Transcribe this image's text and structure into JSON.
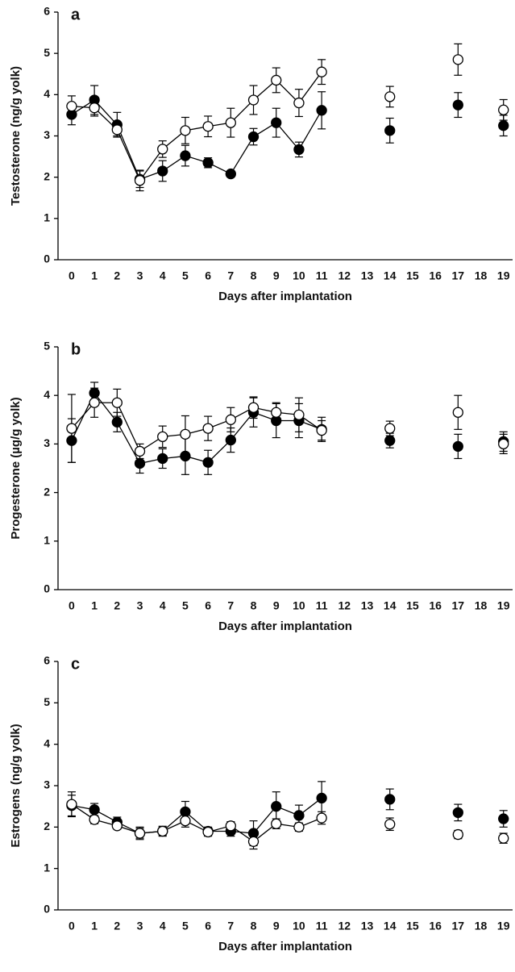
{
  "chart_data": [
    {
      "type": "scatter",
      "label": "a",
      "ylabel": "Testosterone (ng/g yolk)",
      "xlabel": "Days after implantation",
      "x": [
        0,
        1,
        2,
        3,
        4,
        5,
        6,
        7,
        8,
        9,
        10,
        11,
        12,
        13,
        14,
        15,
        16,
        17,
        18,
        19
      ],
      "xlim": [
        -0.6,
        19.4
      ],
      "xticks": [
        0,
        1,
        2,
        3,
        4,
        5,
        6,
        7,
        8,
        9,
        10,
        11,
        12,
        13,
        14,
        15,
        16,
        17,
        18,
        19
      ],
      "ylim": [
        0,
        6
      ],
      "yticks": [
        0,
        1,
        2,
        3,
        4,
        5,
        6
      ],
      "series": [
        {
          "color": "#000000",
          "marker": "filled",
          "values": [
            3.52,
            3.87,
            3.27,
            1.95,
            2.15,
            2.52,
            2.35,
            2.08,
            2.98,
            3.32,
            2.67,
            3.62,
            null,
            null,
            3.13,
            null,
            null,
            3.75,
            null,
            3.25
          ],
          "errors": [
            0.25,
            0.35,
            0.3,
            0.2,
            0.25,
            0.25,
            0.12,
            0.07,
            0.2,
            0.35,
            0.18,
            0.45,
            null,
            null,
            0.3,
            null,
            null,
            0.3,
            null,
            0.25
          ]
        },
        {
          "color": "#000000",
          "marker": "open",
          "values": [
            3.72,
            3.68,
            3.15,
            1.92,
            2.68,
            3.13,
            3.23,
            3.32,
            3.87,
            4.35,
            3.8,
            4.55,
            null,
            null,
            3.95,
            null,
            null,
            4.85,
            null,
            3.63
          ],
          "errors": [
            0.25,
            0.2,
            0.15,
            0.25,
            0.2,
            0.32,
            0.25,
            0.35,
            0.35,
            0.3,
            0.33,
            0.3,
            null,
            null,
            0.25,
            null,
            null,
            0.38,
            null,
            0.25
          ]
        }
      ]
    },
    {
      "type": "scatter",
      "label": "b",
      "ylabel": "Progesterone (µg/g yolk)",
      "xlabel": "Days after implantation",
      "x": [
        0,
        1,
        2,
        3,
        4,
        5,
        6,
        7,
        8,
        9,
        10,
        11,
        12,
        13,
        14,
        15,
        16,
        17,
        18,
        19
      ],
      "xlim": [
        -0.6,
        19.4
      ],
      "xticks": [
        0,
        1,
        2,
        3,
        4,
        5,
        6,
        7,
        8,
        9,
        10,
        11,
        12,
        13,
        14,
        15,
        16,
        17,
        18,
        19
      ],
      "ylim": [
        0,
        5
      ],
      "yticks": [
        0,
        1,
        2,
        3,
        4,
        5
      ],
      "series": [
        {
          "color": "#000000",
          "marker": "filled",
          "values": [
            3.07,
            4.05,
            3.45,
            2.6,
            2.7,
            2.75,
            2.62,
            3.08,
            3.65,
            3.48,
            3.48,
            3.3,
            null,
            null,
            3.07,
            null,
            null,
            2.95,
            null,
            3.05
          ],
          "errors": [
            0.45,
            0.22,
            0.2,
            0.2,
            0.2,
            0.38,
            0.25,
            0.25,
            0.3,
            0.35,
            0.35,
            0.25,
            null,
            null,
            0.15,
            null,
            null,
            0.25,
            null,
            0.2
          ]
        },
        {
          "color": "#000000",
          "marker": "open",
          "values": [
            3.32,
            3.85,
            3.85,
            2.85,
            3.15,
            3.2,
            3.32,
            3.5,
            3.75,
            3.65,
            3.6,
            3.28,
            null,
            null,
            3.32,
            null,
            null,
            3.65,
            null,
            3.0
          ],
          "errors": [
            0.7,
            0.3,
            0.28,
            0.15,
            0.22,
            0.38,
            0.25,
            0.25,
            0.22,
            0.2,
            0.35,
            0.2,
            null,
            null,
            0.15,
            null,
            null,
            0.35,
            null,
            0.2
          ]
        }
      ]
    },
    {
      "type": "scatter",
      "label": "c",
      "ylabel": "Estrogens (ng/g yolk)",
      "xlabel": "Days after implantation",
      "x": [
        0,
        1,
        2,
        3,
        4,
        5,
        6,
        7,
        8,
        9,
        10,
        11,
        12,
        13,
        14,
        15,
        16,
        17,
        18,
        19
      ],
      "xlim": [
        -0.6,
        19.4
      ],
      "xticks": [
        0,
        1,
        2,
        3,
        4,
        5,
        6,
        7,
        8,
        9,
        10,
        11,
        12,
        13,
        14,
        15,
        16,
        17,
        18,
        19
      ],
      "ylim": [
        0,
        6
      ],
      "yticks": [
        0,
        1,
        2,
        3,
        4,
        5,
        6
      ],
      "series": [
        {
          "color": "#000000",
          "marker": "filled",
          "values": [
            2.52,
            2.42,
            2.12,
            1.85,
            1.9,
            2.37,
            1.9,
            1.9,
            1.85,
            2.5,
            2.28,
            2.7,
            null,
            null,
            2.67,
            null,
            null,
            2.35,
            null,
            2.2
          ],
          "errors": [
            0.25,
            0.15,
            0.12,
            0.15,
            0.12,
            0.25,
            0.1,
            0.12,
            0.3,
            0.35,
            0.25,
            0.4,
            null,
            null,
            0.25,
            null,
            null,
            0.2,
            null,
            0.2
          ]
        },
        {
          "color": "#000000",
          "marker": "open",
          "values": [
            2.55,
            2.18,
            2.03,
            1.85,
            1.9,
            2.15,
            1.88,
            2.03,
            1.65,
            2.08,
            2.0,
            2.22,
            null,
            null,
            2.07,
            null,
            null,
            1.82,
            null,
            1.73
          ],
          "errors": [
            0.3,
            0.1,
            0.08,
            0.12,
            0.1,
            0.15,
            0.1,
            0.1,
            0.18,
            0.12,
            0.1,
            0.15,
            null,
            null,
            0.15,
            null,
            null,
            0.1,
            null,
            0.12
          ]
        }
      ]
    }
  ]
}
